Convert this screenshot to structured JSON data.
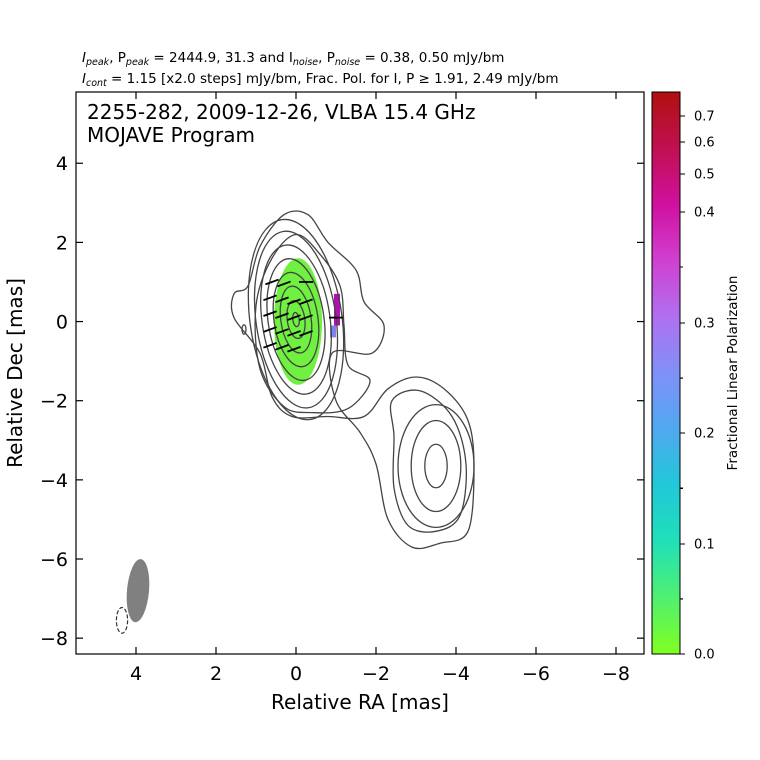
{
  "header": {
    "line1": {
      "pre": "I",
      "sub1": "peak",
      "mid1": ", P",
      "sub2": "peak",
      "mid2": " = 2444.9, 31.3 and I",
      "sub3": "noise",
      "mid3": ", P",
      "sub4": "noise",
      "post": " = 0.38, 0.50 mJy/bm"
    },
    "line2": {
      "pre": "I",
      "sub1": "cont",
      "post": " = 1.15 [x2.0 steps] mJy/bm, Frac. Pol. for I, P ≥ 1.91, 2.49 mJy/bm"
    }
  },
  "panel": {
    "line1": "2255-282, 2009-12-26, VLBA 15.4 GHz",
    "line2": "MOJAVE Program"
  },
  "chart_data": {
    "type": "contour",
    "xlabel": "Relative RA [mas]",
    "ylabel": "Relative Dec [mas]",
    "xlim": [
      5.5,
      -8.7
    ],
    "ylim": [
      -8.4,
      5.8
    ],
    "x_ticks": [
      4,
      2,
      0,
      -2,
      -4,
      -6,
      -8
    ],
    "x_tick_labels": [
      "4",
      "2",
      "0",
      "−2",
      "−4",
      "−6",
      "−8"
    ],
    "y_ticks": [
      4,
      2,
      0,
      -2,
      -4,
      -6,
      -8
    ],
    "y_tick_labels": [
      "4",
      "2",
      "0",
      "−2",
      "−4",
      "−6",
      "−8"
    ],
    "core_contours": {
      "center": [
        0.0,
        0.05
      ],
      "half_widths_mas": [
        0.08,
        0.22,
        0.38,
        0.55,
        0.7,
        0.85,
        1.0,
        1.15
      ],
      "half_heights_mas": [
        0.18,
        0.48,
        0.85,
        1.2,
        1.55,
        1.9,
        2.25,
        2.55
      ]
    },
    "secondary_component": {
      "center": [
        -3.5,
        -3.65
      ],
      "half_widths_mas": [
        0.28,
        0.62,
        0.95
      ],
      "half_heights_mas": [
        0.55,
        1.15,
        1.55
      ]
    },
    "outer_contours": [
      [
        [
          1.55,
          0.7
        ],
        [
          1.55,
          0.1
        ],
        [
          0.9,
          -0.8
        ],
        [
          0.6,
          -1.9
        ],
        [
          0.1,
          -2.4
        ],
        [
          -0.8,
          -2.4
        ],
        [
          -1.7,
          -2.4
        ],
        [
          -2.3,
          -1.7
        ],
        [
          -3.0,
          -1.4
        ],
        [
          -3.7,
          -1.7
        ],
        [
          -4.3,
          -2.5
        ],
        [
          -4.45,
          -3.7
        ],
        [
          -4.3,
          -5.3
        ],
        [
          -3.6,
          -5.6
        ],
        [
          -2.9,
          -5.7
        ],
        [
          -2.3,
          -5.0
        ],
        [
          -2.0,
          -3.6
        ],
        [
          -1.6,
          -2.8
        ],
        [
          -1.0,
          -2.0
        ],
        [
          -0.9,
          -0.8
        ],
        [
          -1.9,
          -0.8
        ],
        [
          -2.2,
          -0.1
        ],
        [
          -1.7,
          0.5
        ],
        [
          -1.5,
          1.3
        ],
        [
          -0.8,
          2.0
        ],
        [
          -0.3,
          2.7
        ],
        [
          0.3,
          2.7
        ],
        [
          0.9,
          1.9
        ],
        [
          1.2,
          0.9
        ]
      ],
      [
        [
          -2.4,
          -2.0
        ],
        [
          -3.1,
          -1.75
        ],
        [
          -3.9,
          -2.4
        ],
        [
          -4.25,
          -3.6
        ],
        [
          -4.1,
          -4.9
        ],
        [
          -3.5,
          -5.3
        ],
        [
          -2.8,
          -5.15
        ],
        [
          -2.45,
          -4.2
        ],
        [
          -2.45,
          -2.9
        ]
      ],
      [
        [
          0.9,
          -1.2
        ],
        [
          0.3,
          -2.15
        ],
        [
          -0.4,
          -2.3
        ],
        [
          -1.3,
          -2.2
        ],
        [
          -1.85,
          -1.5
        ],
        [
          -1.3,
          -1.1
        ],
        [
          -1.2,
          -0.1
        ],
        [
          -1.1,
          0.9
        ],
        [
          -0.6,
          1.7
        ],
        [
          0.0,
          2.2
        ],
        [
          0.6,
          1.6
        ],
        [
          1.0,
          0.4
        ]
      ]
    ],
    "small_island": {
      "center": [
        1.3,
        -0.2
      ],
      "half_width": 0.05,
      "half_height": 0.12
    },
    "polarization_regions": [
      {
        "center": [
          -0.05,
          0.0
        ],
        "half_width": 0.6,
        "half_height": 1.6,
        "frac_pol": 0.0,
        "color": "#70f040"
      },
      {
        "x_range": [
          -0.95,
          -1.1
        ],
        "y_range": [
          -0.1,
          0.7
        ],
        "frac_pol": 0.45,
        "color": "#b010b0"
      },
      {
        "x_range": [
          -0.85,
          -1.0
        ],
        "y_range": [
          -0.4,
          -0.1
        ],
        "frac_pol": 0.28,
        "color": "#8080f0"
      }
    ],
    "evpa_vectors": [
      {
        "x": 0.65,
        "y": 0.6,
        "angle_deg": 70
      },
      {
        "x": 0.35,
        "y": 0.55,
        "angle_deg": 70
      },
      {
        "x": 0.05,
        "y": 0.5,
        "angle_deg": 70
      },
      {
        "x": -0.25,
        "y": 0.5,
        "angle_deg": 70
      },
      {
        "x": 0.65,
        "y": 0.2,
        "angle_deg": 70
      },
      {
        "x": 0.35,
        "y": 0.15,
        "angle_deg": 70
      },
      {
        "x": 0.05,
        "y": 0.1,
        "angle_deg": 70
      },
      {
        "x": -0.25,
        "y": 0.1,
        "angle_deg": 70
      },
      {
        "x": 0.65,
        "y": -0.2,
        "angle_deg": 70
      },
      {
        "x": 0.35,
        "y": -0.25,
        "angle_deg": 70
      },
      {
        "x": 0.05,
        "y": -0.3,
        "angle_deg": 70
      },
      {
        "x": -0.25,
        "y": -0.3,
        "angle_deg": 70
      },
      {
        "x": 0.65,
        "y": -0.6,
        "angle_deg": 70
      },
      {
        "x": 0.35,
        "y": -0.65,
        "angle_deg": 70
      },
      {
        "x": 0.05,
        "y": -0.7,
        "angle_deg": 70
      },
      {
        "x": 0.6,
        "y": 1.0,
        "angle_deg": 70
      },
      {
        "x": 0.3,
        "y": 0.95,
        "angle_deg": 70
      },
      {
        "x": -0.25,
        "y": 1.0,
        "angle_deg": 90
      },
      {
        "x": -1.0,
        "y": 0.1,
        "angle_deg": 90
      }
    ],
    "beam": {
      "center": [
        3.95,
        -6.8
      ],
      "major_mas": 1.6,
      "minor_mas": 0.55,
      "color": "#808080"
    },
    "pol_beam": {
      "center": [
        4.35,
        -7.55
      ],
      "major_mas": 0.65,
      "minor_mas": 0.28
    },
    "colorbar": {
      "label": "Fractional Linear Polarization",
      "range": [
        0.0,
        0.76
      ],
      "ticks": [
        0.0,
        0.1,
        0.2,
        0.3,
        0.4,
        0.5,
        0.6,
        0.7
      ],
      "tick_labels": [
        "0.0",
        "0.1",
        "0.2",
        "0.3",
        "0.4",
        "0.5",
        "0.6",
        "0.7"
      ],
      "colors": [
        "#80ff20",
        "#50f070",
        "#20e0b8",
        "#20c8d8",
        "#50a8f0",
        "#8090f8",
        "#b070f0",
        "#d040d0",
        "#d010a0",
        "#c01050",
        "#b01010"
      ]
    }
  }
}
